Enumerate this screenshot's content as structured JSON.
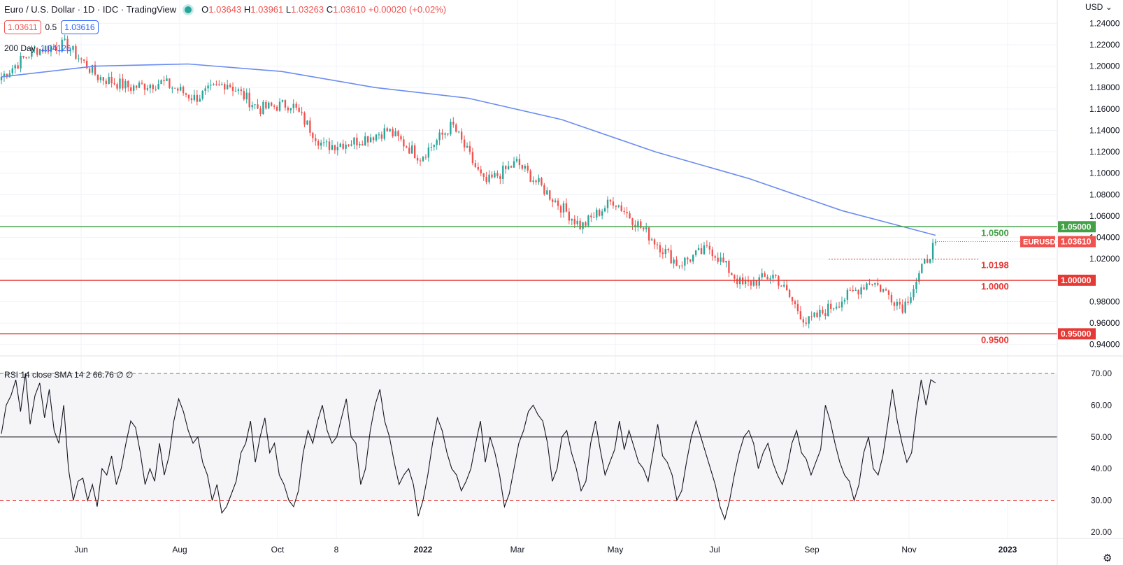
{
  "header": {
    "title": "Euro / U.S. Dollar · 1D · IDC · TradingView",
    "open_label": "O",
    "open": "1.03643",
    "high_label": "H",
    "high": "1.03961",
    "low_label": "L",
    "low": "1.03263",
    "close_label": "C",
    "close": "1.03610",
    "change": "+0.00020 (+0.02%)",
    "status_color": "#26a69a"
  },
  "quote": {
    "sell": "1.03611",
    "spread": "0.5",
    "buy": "1.03616"
  },
  "ma_legend": {
    "label": "200 Day",
    "value": "1.04126"
  },
  "rsi_legend": {
    "label": "RSI 14 close SMA 14 2",
    "value": "66.76",
    "extra1": "∅",
    "extra2": "∅"
  },
  "currency_label": "USD",
  "currency_caret": "⌄",
  "settings_icon": "⚙",
  "colors": {
    "up": "#26a69a",
    "down": "#ef5350",
    "ma": "#6b8cf0",
    "support": "#e53935",
    "resistance": "#43a047",
    "grid": "#f0f3fa"
  },
  "chart_data": [
    {
      "type": "candlestick",
      "symbol_tag": "EURUSD",
      "last_price": "1.03610",
      "ylim": [
        0.93,
        1.25
      ],
      "y_ticks": [
        "1.24000",
        "1.22000",
        "1.20000",
        "1.18000",
        "1.16000",
        "1.14000",
        "1.12000",
        "1.10000",
        "1.08000",
        "1.06000",
        "1.04000",
        "1.02000",
        "0.98000",
        "0.96000",
        "0.94000"
      ],
      "x_ticks": [
        "Jun",
        "Aug",
        "Oct",
        "8",
        "2022",
        "Mar",
        "May",
        "Jul",
        "Sep",
        "Nov",
        "2023"
      ],
      "close_path": [
        [
          "Apr 2021",
          1.19
        ],
        [
          "May 2021",
          1.215
        ],
        [
          "Jun 2021",
          1.22
        ],
        [
          "Jun 2021",
          1.19
        ],
        [
          "Jul 2021",
          1.18
        ],
        [
          "Aug 2021",
          1.185
        ],
        [
          "Aug 2021",
          1.17
        ],
        [
          "Sep 2021",
          1.185
        ],
        [
          "Oct 2021",
          1.16
        ],
        [
          "Nov 2021",
          1.165
        ],
        [
          "Nov 2021",
          1.125
        ],
        [
          "Dec 2021",
          1.13
        ],
        [
          "Jan 2022",
          1.14
        ],
        [
          "Jan 2022",
          1.115
        ],
        [
          "Feb 2022",
          1.145
        ],
        [
          "Mar 2022",
          1.09
        ],
        [
          "Mar 2022",
          1.11
        ],
        [
          "Apr 2022",
          1.08
        ],
        [
          "May 2022",
          1.05
        ],
        [
          "Jun 2022",
          1.075
        ],
        [
          "Jun 2022",
          1.045
        ],
        [
          "Jul 2022",
          1.015
        ],
        [
          "Aug 2022",
          1.03
        ],
        [
          "Sep 2022",
          0.995
        ],
        [
          "Sep 2022",
          1.005
        ],
        [
          "Sep 2022",
          0.96
        ],
        [
          "Oct 2022",
          0.98
        ],
        [
          "Oct 2022",
          1.0
        ],
        [
          "Nov 2022",
          0.975
        ],
        [
          "Nov 2022",
          1.036
        ]
      ],
      "moving_average": {
        "name": "200 Day",
        "points": [
          [
            "Apr 2021",
            1.19
          ],
          [
            "Jun 2021",
            1.2
          ],
          [
            "Jul 2021",
            1.202
          ],
          [
            "Sep 2021",
            1.195
          ],
          [
            "Nov 2021",
            1.18
          ],
          [
            "Jan 2022",
            1.17
          ],
          [
            "Mar 2022",
            1.15
          ],
          [
            "May 2022",
            1.12
          ],
          [
            "Jul 2022",
            1.095
          ],
          [
            "Sep 2022",
            1.065
          ],
          [
            "Nov 2022",
            1.042
          ]
        ]
      },
      "horizontal_levels": [
        {
          "price": 1.05,
          "label": "1.0500",
          "axis_label": "1.05000",
          "color": "#43a047"
        },
        {
          "price": 1.0198,
          "label": "1.0198",
          "color": "#e53935",
          "dotted": true
        },
        {
          "price": 1.0,
          "label": "1.0000",
          "axis_label": "1.00000",
          "color": "#e53935"
        },
        {
          "price": 0.95,
          "label": "0.9500",
          "axis_label": "0.95000",
          "color": "#e53935"
        }
      ]
    },
    {
      "type": "line",
      "name": "RSI",
      "ylim": [
        18,
        72
      ],
      "y_ticks": [
        "70.00",
        "60.00",
        "50.00",
        "40.00",
        "30.00",
        "20.00"
      ],
      "bands": {
        "upper": 70,
        "middle": 50,
        "lower": 30
      },
      "values": [
        51,
        60,
        63,
        68,
        58,
        70,
        54,
        63,
        67,
        56,
        65,
        52,
        48,
        60,
        40,
        30,
        36,
        37,
        30,
        35,
        28,
        40,
        38,
        44,
        35,
        40,
        48,
        55,
        53,
        45,
        35,
        40,
        36,
        48,
        38,
        44,
        55,
        62,
        58,
        52,
        48,
        50,
        42,
        38,
        30,
        35,
        26,
        28,
        32,
        36,
        45,
        48,
        55,
        42,
        50,
        56,
        45,
        48,
        38,
        35,
        30,
        28,
        33,
        45,
        52,
        48,
        55,
        60,
        52,
        48,
        50,
        56,
        62,
        50,
        48,
        35,
        40,
        52,
        60,
        65,
        55,
        50,
        42,
        35,
        38,
        40,
        35,
        25,
        30,
        38,
        48,
        56,
        52,
        45,
        40,
        38,
        33,
        36,
        40,
        48,
        55,
        42,
        50,
        45,
        38,
        28,
        32,
        40,
        48,
        52,
        58,
        60,
        57,
        55,
        48,
        36,
        40,
        50,
        52,
        45,
        40,
        33,
        36,
        48,
        55,
        46,
        38,
        42,
        46,
        55,
        46,
        52,
        47,
        42,
        40,
        36,
        45,
        54,
        44,
        42,
        38,
        30,
        33,
        42,
        50,
        55,
        50,
        45,
        40,
        35,
        28,
        24,
        30,
        38,
        45,
        50,
        52,
        48,
        40,
        45,
        48,
        42,
        38,
        35,
        40,
        48,
        52,
        45,
        43,
        38,
        42,
        46,
        60,
        55,
        48,
        42,
        38,
        36,
        30,
        35,
        45,
        50,
        40,
        38,
        44,
        54,
        65,
        55,
        48,
        42,
        45,
        58,
        68,
        60,
        68,
        67
      ]
    }
  ]
}
